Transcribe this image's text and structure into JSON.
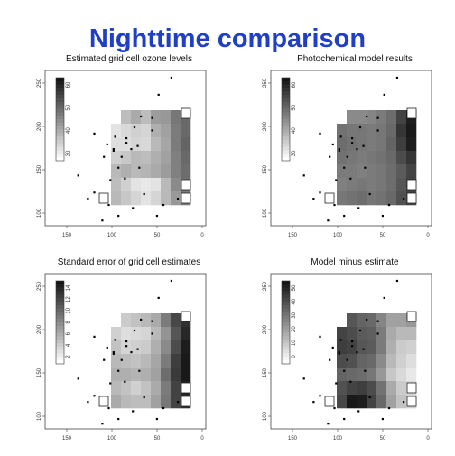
{
  "title": "Nighttime comparison",
  "panels": [
    {
      "title": "Estimated grid cell ozone levels",
      "legend_ticks": [
        "60",
        "50",
        "40",
        "30"
      ],
      "y_ticks": [
        "250",
        "200",
        "150",
        "100"
      ],
      "x_ticks": [
        "150",
        "100",
        "50",
        "0"
      ],
      "grid": [
        [
          null,
          null,
          0.28,
          0.36,
          0.28,
          0.42,
          0.44,
          0.58,
          0.64
        ],
        [
          null,
          0.12,
          0.16,
          0.2,
          0.18,
          0.34,
          0.4,
          0.56,
          0.64
        ],
        [
          null,
          0.14,
          0.14,
          0.18,
          0.16,
          0.3,
          0.38,
          0.56,
          0.66
        ],
        [
          null,
          0.2,
          0.24,
          0.3,
          0.28,
          0.34,
          0.4,
          0.54,
          0.64
        ],
        [
          null,
          0.3,
          0.34,
          0.3,
          0.32,
          0.36,
          0.42,
          0.54,
          0.62
        ],
        [
          null,
          0.28,
          0.2,
          0.12,
          0.1,
          0.12,
          0.3,
          0.5,
          0.6
        ],
        [
          null,
          0.3,
          0.24,
          0.18,
          0.12,
          0.18,
          0.3,
          0.44,
          0.56
        ]
      ]
    },
    {
      "title": "Photochemical model results",
      "legend_ticks": [
        "60",
        "50",
        "40",
        "30"
      ],
      "y_ticks": [
        "250",
        "200",
        "150",
        "100"
      ],
      "x_ticks": [
        "150",
        "100",
        "50",
        "0"
      ],
      "grid": [
        [
          null,
          null,
          0.5,
          0.5,
          0.52,
          0.56,
          0.62,
          0.8,
          0.96
        ],
        [
          null,
          0.6,
          0.58,
          0.58,
          0.56,
          0.58,
          0.64,
          0.86,
          0.98
        ],
        [
          null,
          0.62,
          0.6,
          0.58,
          0.56,
          0.58,
          0.66,
          0.82,
          0.96
        ],
        [
          null,
          0.6,
          0.58,
          0.56,
          0.58,
          0.6,
          0.64,
          0.76,
          0.86
        ],
        [
          null,
          0.56,
          0.56,
          0.54,
          0.56,
          0.58,
          0.62,
          0.7,
          0.8
        ],
        [
          null,
          0.54,
          0.56,
          0.58,
          0.56,
          0.58,
          0.62,
          0.72,
          0.8
        ],
        [
          null,
          0.58,
          0.6,
          0.62,
          0.58,
          0.6,
          0.64,
          0.74,
          0.8
        ]
      ]
    },
    {
      "title": "Standard error of grid cell estimates",
      "legend_ticks": [
        "14",
        "12",
        "10",
        "8",
        "6",
        "4",
        "2"
      ],
      "y_ticks": [
        "250",
        "200",
        "150",
        "100"
      ],
      "x_ticks": [
        "150",
        "100",
        "50",
        "0"
      ],
      "grid": [
        [
          null,
          null,
          0.22,
          0.26,
          0.3,
          0.36,
          0.56,
          0.78,
          0.88
        ],
        [
          null,
          0.2,
          0.14,
          0.16,
          0.18,
          0.3,
          0.46,
          0.72,
          0.92
        ],
        [
          null,
          0.26,
          0.18,
          0.2,
          0.22,
          0.34,
          0.5,
          0.76,
          0.96
        ],
        [
          null,
          0.3,
          0.28,
          0.26,
          0.3,
          0.38,
          0.56,
          0.82,
          0.98
        ],
        [
          null,
          0.34,
          0.34,
          0.32,
          0.34,
          0.4,
          0.62,
          0.84,
          0.98
        ],
        [
          null,
          0.3,
          0.26,
          0.2,
          0.26,
          0.36,
          0.56,
          0.8,
          0.94
        ],
        [
          null,
          0.36,
          0.3,
          0.28,
          0.28,
          0.4,
          0.58,
          0.8,
          0.9
        ]
      ]
    },
    {
      "title": "Model minus estimate",
      "legend_ticks": [
        "50",
        "40",
        "30",
        "20",
        "10",
        "0"
      ],
      "y_ticks": [
        "250",
        "200",
        "150",
        "100"
      ],
      "x_ticks": [
        "150",
        "100",
        "50",
        "0"
      ],
      "grid": [
        [
          null,
          null,
          0.72,
          0.66,
          0.64,
          0.52,
          0.4,
          0.4,
          0.44
        ],
        [
          null,
          0.8,
          0.76,
          0.7,
          0.68,
          0.56,
          0.36,
          0.3,
          0.3
        ],
        [
          null,
          0.82,
          0.8,
          0.72,
          0.7,
          0.56,
          0.34,
          0.22,
          0.2
        ],
        [
          null,
          0.76,
          0.74,
          0.66,
          0.64,
          0.5,
          0.3,
          0.2,
          0.14
        ],
        [
          null,
          0.66,
          0.64,
          0.62,
          0.58,
          0.44,
          0.24,
          0.16,
          0.1
        ],
        [
          null,
          0.74,
          0.8,
          0.82,
          0.76,
          0.6,
          0.36,
          0.22,
          0.16
        ],
        [
          null,
          0.78,
          0.98,
          0.96,
          0.8,
          0.64,
          0.4,
          0.26,
          0.2
        ]
      ]
    }
  ],
  "stations": [
    [
      0.78,
      0.04
    ],
    [
      0.7,
      0.15
    ],
    [
      0.59,
      0.29
    ],
    [
      0.66,
      0.3
    ],
    [
      0.55,
      0.36
    ],
    [
      0.5,
      0.43
    ],
    [
      0.43,
      0.42
    ],
    [
      0.5,
      0.46
    ],
    [
      0.38,
      0.47
    ],
    [
      0.57,
      0.48
    ],
    [
      0.42,
      0.51
    ],
    [
      0.47,
      0.55
    ],
    [
      0.36,
      0.55
    ],
    [
      0.42,
      0.5
    ],
    [
      0.45,
      0.62
    ],
    [
      0.2,
      0.67
    ],
    [
      0.4,
      0.7
    ],
    [
      0.49,
      0.69
    ],
    [
      0.61,
      0.79
    ],
    [
      0.3,
      0.78
    ],
    [
      0.39,
      0.86
    ],
    [
      0.26,
      0.82
    ],
    [
      0.54,
      0.88
    ],
    [
      0.73,
      0.86
    ],
    [
      0.45,
      0.93
    ],
    [
      0.69,
      0.93
    ],
    [
      0.82,
      0.82
    ],
    [
      0.53,
      0.5
    ],
    [
      0.3,
      0.4
    ],
    [
      0.35,
      0.96
    ],
    [
      0.66,
      0.38
    ],
    [
      0.58,
      0.62
    ]
  ]
}
